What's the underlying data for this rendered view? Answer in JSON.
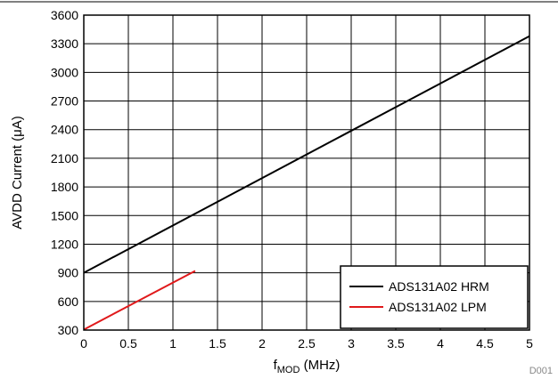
{
  "chart_data": {
    "type": "line",
    "title": "",
    "xlabel_main": "f",
    "xlabel_sub": "MOD",
    "xlabel_rest": " (MHz)",
    "ylabel": "AVDD Current (μA)",
    "xlim": [
      0,
      5
    ],
    "ylim": [
      300,
      3600
    ],
    "xticks": [
      0,
      0.5,
      1,
      1.5,
      2,
      2.5,
      3,
      3.5,
      4,
      4.5,
      5
    ],
    "xtick_labels": [
      "0",
      "0.5",
      "1",
      "1.5",
      "2",
      "2.5",
      "3",
      "3.5",
      "4",
      "4.5",
      "5"
    ],
    "yticks": [
      300,
      600,
      900,
      1200,
      1500,
      1800,
      2100,
      2400,
      2700,
      3000,
      3300,
      3600
    ],
    "ytick_labels": [
      "300",
      "600",
      "900",
      "1200",
      "1500",
      "1800",
      "2100",
      "2400",
      "2700",
      "3000",
      "3300",
      "3600"
    ],
    "grid": true,
    "legend_position": "bottom-right",
    "series": [
      {
        "name": "ADS131A02 HRM",
        "color": "#000000",
        "x": [
          0,
          5
        ],
        "y": [
          900,
          3380
        ]
      },
      {
        "name": "ADS131A02 LPM",
        "color": "#e0191b",
        "x": [
          0,
          1.25
        ],
        "y": [
          305,
          920
        ]
      }
    ],
    "figure_id": "D001"
  }
}
